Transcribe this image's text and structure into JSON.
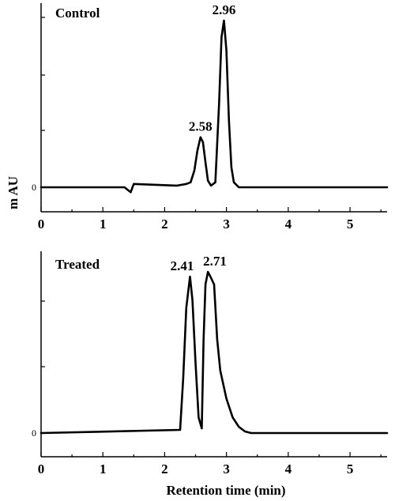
{
  "chart_data": [
    {
      "type": "line",
      "title": "Control",
      "xlabel": "",
      "ylabel": "m AU",
      "xlim": [
        0,
        5.6
      ],
      "x_ticks": [
        "0",
        "1",
        "2",
        "3",
        "4",
        "5"
      ],
      "y_ticks": [
        "0"
      ],
      "grid": false,
      "peaks": [
        {
          "label": "2.58",
          "x": 2.58
        },
        {
          "label": "2.96",
          "x": 2.96
        }
      ],
      "series": [
        {
          "x": [
            0,
            1.35,
            1.45,
            1.5,
            2.2,
            2.35,
            2.42,
            2.48,
            2.53,
            2.58,
            2.62,
            2.66,
            2.7,
            2.75,
            2.82,
            2.88,
            2.92,
            2.96,
            3.0,
            3.04,
            3.08,
            3.12,
            3.2,
            3.4,
            5.6
          ],
          "y": [
            0,
            0,
            -0.03,
            0.02,
            0.01,
            0.02,
            0.03,
            0.1,
            0.22,
            0.3,
            0.27,
            0.15,
            0.04,
            0.01,
            0.03,
            0.5,
            0.9,
            1.0,
            0.82,
            0.4,
            0.12,
            0.03,
            0,
            0,
            0
          ]
        }
      ]
    },
    {
      "type": "line",
      "title": "Treated",
      "xlabel": "Retention time (min)",
      "ylabel": "",
      "xlim": [
        0,
        5.6
      ],
      "x_ticks": [
        "0",
        "1",
        "2",
        "3",
        "4",
        "5"
      ],
      "y_ticks": [
        "0"
      ],
      "grid": false,
      "peaks": [
        {
          "label": "2.41",
          "x": 2.41
        },
        {
          "label": "2.71",
          "x": 2.71
        }
      ],
      "series": [
        {
          "x": [
            0,
            2.25,
            2.3,
            2.35,
            2.41,
            2.45,
            2.5,
            2.55,
            2.6,
            2.63,
            2.66,
            2.7,
            2.74,
            2.8,
            2.85,
            2.9,
            3.0,
            3.1,
            3.2,
            3.3,
            3.4,
            5.6
          ],
          "y": [
            0,
            0.02,
            0.35,
            0.8,
            1.0,
            0.85,
            0.45,
            0.1,
            0.03,
            0.6,
            0.95,
            1.03,
            1.0,
            0.95,
            0.6,
            0.4,
            0.22,
            0.1,
            0.04,
            0.01,
            0,
            0
          ]
        }
      ]
    }
  ]
}
